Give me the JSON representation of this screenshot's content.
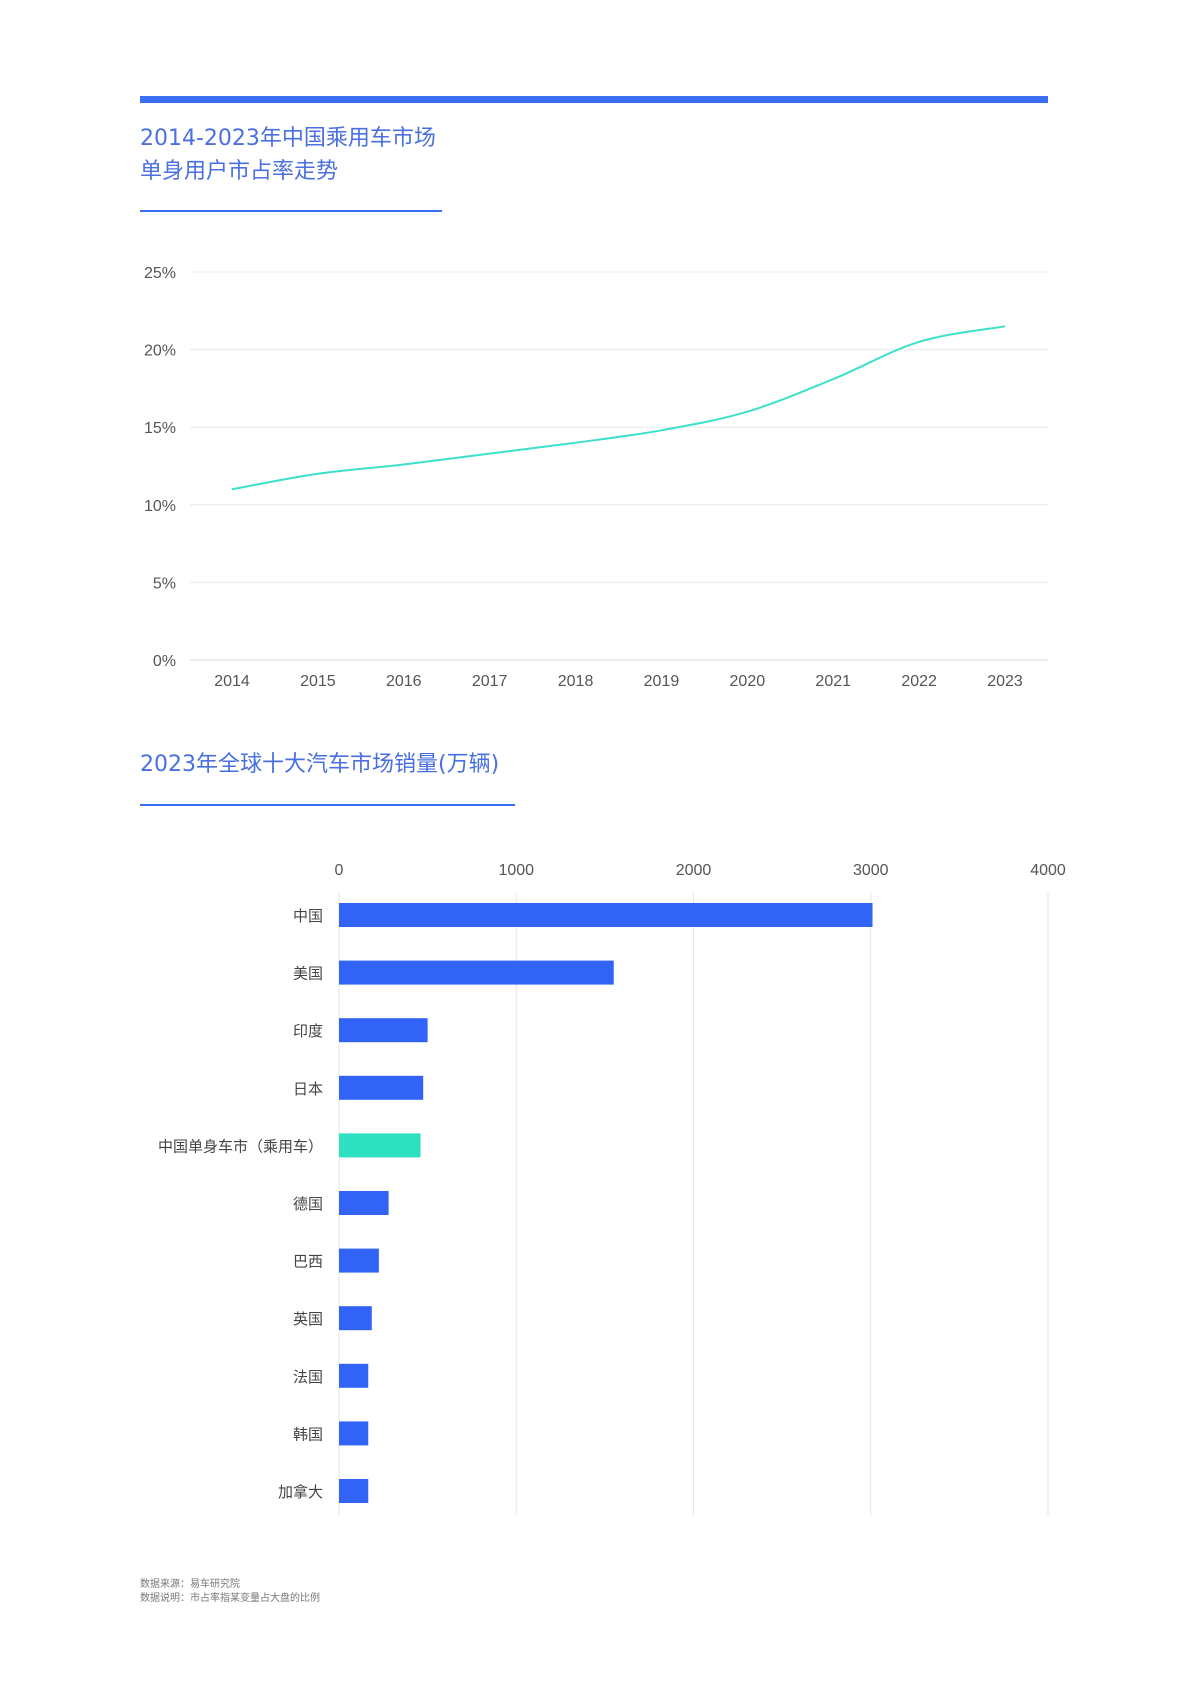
{
  "line_chart": {
    "title_line1": "2014-2023年中国乘用车市场",
    "title_line2": "单身用户市占率走势"
  },
  "bar_chart": {
    "title": "2023年全球十大汽车市场销量(万辆)"
  },
  "colors": {
    "accent": "#3a6cf4",
    "line": "#3de0c8",
    "bar": "#3163f6",
    "highlight_bar": "#2ce0c0"
  },
  "footer": {
    "source": "数据来源：易车研究院",
    "note": "数据说明：市占率指某变量占大盘的比例"
  },
  "chart_data": [
    {
      "type": "line",
      "title": "2014-2023年中国乘用车市场单身用户市占率走势",
      "x": [
        "2014",
        "2015",
        "2016",
        "2017",
        "2018",
        "2019",
        "2020",
        "2021",
        "2022",
        "2023"
      ],
      "series": [
        {
          "name": "单身用户市占率",
          "values": [
            11.0,
            12.0,
            12.6,
            13.3,
            14.0,
            14.8,
            16.0,
            18.1,
            20.5,
            21.5
          ]
        }
      ],
      "yticks": [
        "0%",
        "5%",
        "10%",
        "15%",
        "20%",
        "25%"
      ],
      "ylim": [
        0,
        25
      ],
      "grid": true
    },
    {
      "type": "bar",
      "orientation": "horizontal",
      "title": "2023年全球十大汽车市场销量(万辆)",
      "categories": [
        "中国",
        "美国",
        "印度",
        "日本",
        "中国单身车市（乘用车）",
        "德国",
        "巴西",
        "英国",
        "法国",
        "韩国",
        "加拿大"
      ],
      "values": [
        3010,
        1550,
        500,
        475,
        460,
        280,
        225,
        185,
        165,
        165,
        165
      ],
      "highlight": "中国单身车市（乘用车）",
      "xticks": [
        "0",
        "1000",
        "2000",
        "3000",
        "4000"
      ],
      "xlim": [
        0,
        4000
      ],
      "grid": true
    }
  ]
}
